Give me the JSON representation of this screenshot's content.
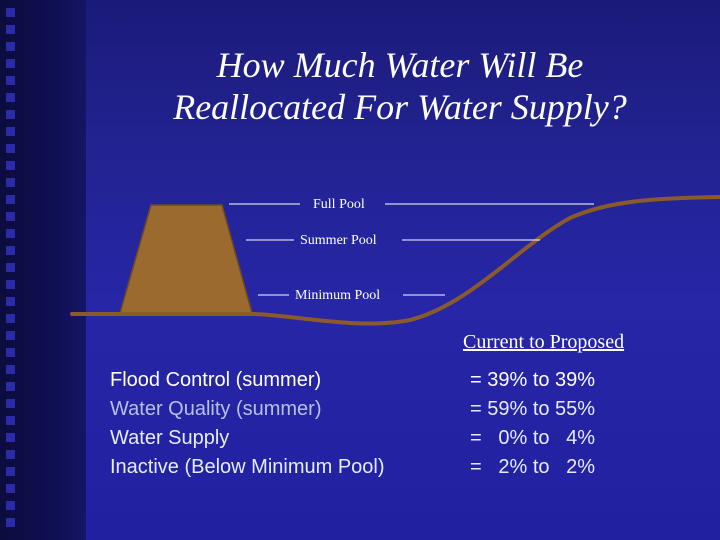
{
  "title": {
    "line1": "How Much Water Will Be",
    "line2": "Reallocated For Water Supply?"
  },
  "diagram": {
    "pool_levels": [
      {
        "label": "Full Pool"
      },
      {
        "label": "Summer Pool"
      },
      {
        "label": "Minimum Pool"
      }
    ]
  },
  "colors": {
    "background": "#2424a0",
    "dam": "#9b6a2f",
    "ground": "#8a5a2a",
    "text_white": "#ffffff",
    "text_light": "#e8ecff",
    "text_muted": "#b8c0e8"
  },
  "allocation": {
    "header": "Current to Proposed",
    "rows": [
      {
        "label": "Flood Control (summer)",
        "value": "= 39% to 39%",
        "current": 39,
        "proposed": 39,
        "color": "#ffffff"
      },
      {
        "label": "Water Quality (summer)",
        "value": "= 59% to 55%",
        "current": 59,
        "proposed": 55,
        "color": "#b8c0e8"
      },
      {
        "label": "Water Supply",
        "value": "=   0% to   4%",
        "current": 0,
        "proposed": 4,
        "color": "#e8ecff"
      },
      {
        "label": "Inactive (Below Minimum Pool)",
        "value": "=   2% to   2%",
        "current": 2,
        "proposed": 2,
        "color": "#e8ecff"
      }
    ]
  }
}
